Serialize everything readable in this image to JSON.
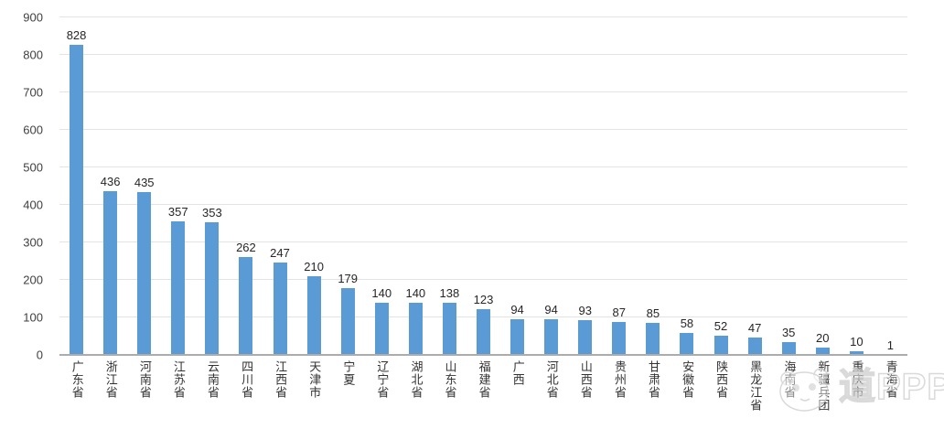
{
  "chart_data": {
    "type": "bar",
    "categories": [
      "广东省",
      "浙江省",
      "河南省",
      "江苏省",
      "云南省",
      "四川省",
      "江西省",
      "天津市",
      "宁夏",
      "辽宁省",
      "湖北省",
      "山东省",
      "福建省",
      "广西",
      "河北省",
      "山西省",
      "贵州省",
      "甘肃省",
      "安徽省",
      "陕西省",
      "黑龙江省",
      "海南省",
      "新疆兵团",
      "重庆市",
      "青海省"
    ],
    "values": [
      828,
      436,
      435,
      357,
      353,
      262,
      247,
      210,
      179,
      140,
      140,
      138,
      123,
      94,
      94,
      93,
      87,
      85,
      58,
      52,
      47,
      35,
      20,
      10,
      1
    ],
    "title": "",
    "xlabel": "",
    "ylabel": "",
    "ylim": [
      0,
      900
    ],
    "yticks": [
      0,
      100,
      200,
      300,
      400,
      500,
      600,
      700,
      800,
      900
    ],
    "grid": true,
    "legend": false,
    "data_labels": true,
    "bar_color": "#5b9bd5"
  },
  "colors": {
    "bar": "#5b9bd5",
    "gridline": "#e3e3e3",
    "axis_line": "#acacac",
    "tick_text": "#404040",
    "value_text": "#262626",
    "watermark": "#cdcdcd"
  },
  "watermark": {
    "text": "道PPP",
    "mascot": "panda-mascot"
  }
}
